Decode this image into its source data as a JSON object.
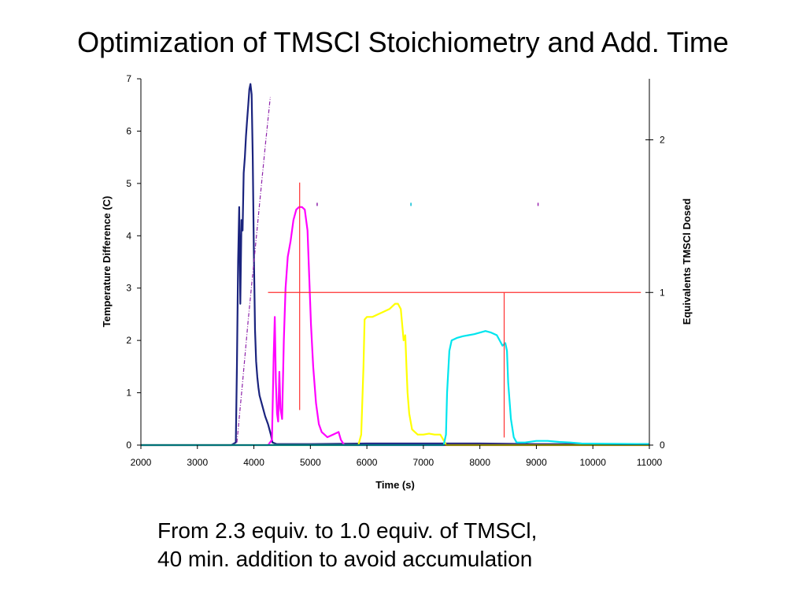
{
  "slide": {
    "title": "Optimization of TMSCl Stoichiometry and Add. Time",
    "caption_line1": "From 2.3 equiv. to 1.0 equiv. of TMSCl,",
    "caption_line2": "40 min. addition to avoid accumulation"
  },
  "chart_data": {
    "type": "line",
    "title": "",
    "xlabel": "Time (s)",
    "ylabel": "Temperature Difference (C)",
    "y2label": "Equivalents TMSCl Dosed",
    "xlim": [
      2000,
      11000
    ],
    "ylim": [
      0,
      7
    ],
    "y2lim": [
      0,
      2.4
    ],
    "xticks": [
      2000,
      3000,
      4000,
      5000,
      6000,
      7000,
      8000,
      9000,
      10000,
      11000
    ],
    "yticks": [
      0,
      1,
      2,
      3,
      4,
      5,
      6,
      7
    ],
    "y2ticks": [
      0,
      1,
      2
    ],
    "grid": false,
    "legend": "none",
    "series": [
      {
        "color": "#1a237e",
        "axis": "left",
        "style": "solid",
        "x": [
          2000,
          3600,
          3680,
          3700,
          3720,
          3740,
          3760,
          3780,
          3800,
          3820,
          3840,
          3860,
          3880,
          3900,
          3920,
          3940,
          3960,
          3980,
          4000,
          4020,
          4040,
          4060,
          4080,
          4100,
          4150,
          4200,
          4250,
          4300,
          4330,
          4400,
          5000,
          6000,
          7000,
          8000,
          9000,
          10000,
          11000
        ],
        "y": [
          0,
          0,
          0.05,
          1.5,
          3.5,
          4.55,
          2.7,
          4.3,
          4.1,
          5.2,
          5.5,
          5.9,
          6.2,
          6.5,
          6.8,
          6.9,
          6.7,
          5.5,
          3.6,
          2.2,
          1.6,
          1.3,
          1.1,
          0.95,
          0.75,
          0.55,
          0.4,
          0.2,
          0.05,
          0.02,
          0.02,
          0.03,
          0.03,
          0.03,
          0.02,
          0.02,
          0.02
        ]
      },
      {
        "color": "#8e24aa",
        "axis": "left",
        "style": "dashdot",
        "x": [
          3700,
          3800,
          3900,
          4000,
          4100,
          4200,
          4290
        ],
        "y": [
          0.05,
          1.2,
          2.4,
          3.5,
          4.6,
          5.7,
          6.65
        ]
      },
      {
        "color": "#ff00ff",
        "axis": "left",
        "style": "solid",
        "x": [
          2000,
          4250,
          4320,
          4350,
          4370,
          4390,
          4410,
          4430,
          4450,
          4470,
          4500,
          4530,
          4560,
          4600,
          4650,
          4700,
          4750,
          4800,
          4850,
          4900,
          4950,
          4980,
          5010,
          5050,
          5100,
          5150,
          5200,
          5250,
          5300,
          5400,
          5500,
          5540,
          5600,
          11000
        ],
        "y": [
          0,
          0,
          0.1,
          1.7,
          2.45,
          1.2,
          0.6,
          0.45,
          1.4,
          0.7,
          0.5,
          2.0,
          3.0,
          3.6,
          3.9,
          4.3,
          4.5,
          4.55,
          4.55,
          4.5,
          4.1,
          3.2,
          2.3,
          1.5,
          0.8,
          0.4,
          0.25,
          0.2,
          0.15,
          0.2,
          0.25,
          0.1,
          0,
          0
        ]
      },
      {
        "color": "#ffff00",
        "axis": "left",
        "style": "solid",
        "x": [
          2000,
          5850,
          5900,
          5940,
          5960,
          6000,
          6100,
          6200,
          6300,
          6400,
          6500,
          6550,
          6600,
          6650,
          6680,
          6700,
          6720,
          6750,
          6800,
          6850,
          6900,
          7000,
          7100,
          7200,
          7300,
          7380,
          7400,
          11000
        ],
        "y": [
          0,
          0,
          0.2,
          1.5,
          2.4,
          2.45,
          2.45,
          2.5,
          2.55,
          2.6,
          2.7,
          2.7,
          2.6,
          2.0,
          2.1,
          1.5,
          1.0,
          0.6,
          0.3,
          0.25,
          0.2,
          0.2,
          0.22,
          0.2,
          0.2,
          0.05,
          0,
          0
        ]
      },
      {
        "color": "#00e5ee",
        "axis": "left",
        "style": "solid",
        "x": [
          2000,
          7360,
          7400,
          7420,
          7460,
          7500,
          7600,
          7700,
          7800,
          7900,
          8000,
          8100,
          8200,
          8300,
          8400,
          8450,
          8480,
          8500,
          8550,
          8600,
          8650,
          8700,
          8800,
          9000,
          9200,
          9400,
          9600,
          9800,
          11000
        ],
        "y": [
          0,
          0,
          0.2,
          1.0,
          1.8,
          2.0,
          2.05,
          2.08,
          2.1,
          2.12,
          2.15,
          2.18,
          2.15,
          2.1,
          1.9,
          1.95,
          1.8,
          1.2,
          0.5,
          0.15,
          0.05,
          0.05,
          0.05,
          0.08,
          0.08,
          0.06,
          0.05,
          0.03,
          0.02
        ]
      },
      {
        "color": "#ff3030",
        "axis": "right",
        "style": "solid",
        "segments": [
          [
            [
              4250,
              1.0
            ],
            [
              10850,
              1.0
            ]
          ],
          [
            [
              4810,
              0.23
            ],
            [
              4810,
              1.72
            ]
          ],
          [
            [
              8430,
              0.05
            ],
            [
              8430,
              1.0
            ]
          ]
        ]
      }
    ],
    "markers": [
      {
        "x": 5120,
        "y": 4.6,
        "color": "#8e24aa"
      },
      {
        "x": 6780,
        "y": 4.6,
        "color": "#00bcd4"
      },
      {
        "x": 9030,
        "y": 4.6,
        "color": "#9c27b0"
      }
    ]
  }
}
